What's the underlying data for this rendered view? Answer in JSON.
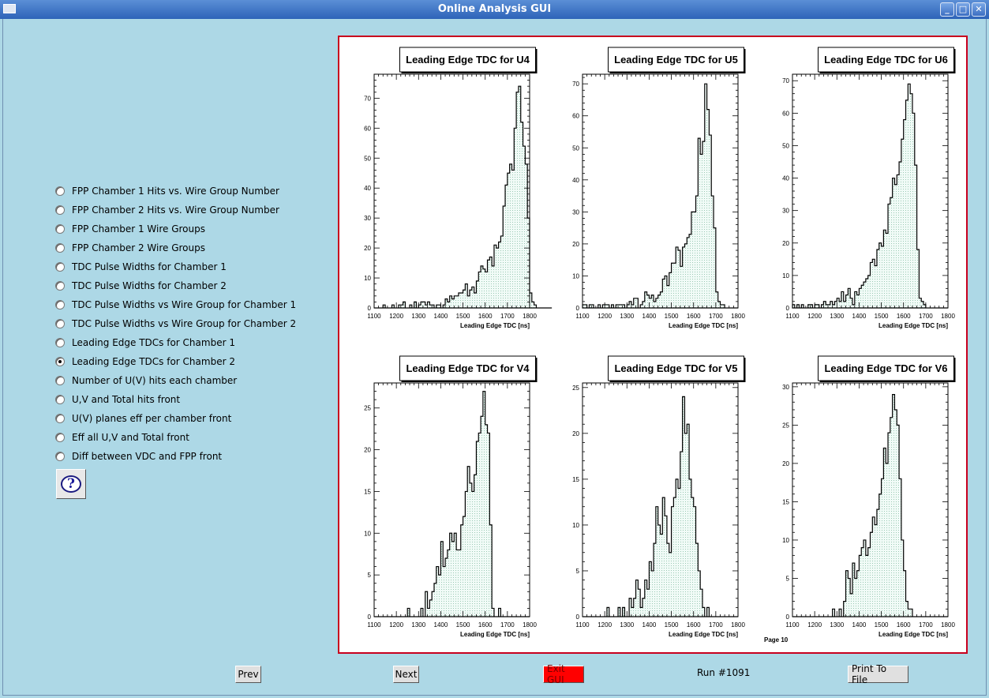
{
  "window": {
    "title": "Online Analysis GUI"
  },
  "options": [
    {
      "label": "FPP Chamber 1 Hits vs. Wire Group Number",
      "checked": false
    },
    {
      "label": "FPP Chamber 2 Hits vs. Wire Group Number",
      "checked": false
    },
    {
      "label": "FPP Chamber 1 Wire Groups",
      "checked": false
    },
    {
      "label": "FPP Chamber 2 Wire Groups",
      "checked": false
    },
    {
      "label": "TDC Pulse Widths for Chamber 1",
      "checked": false
    },
    {
      "label": "TDC Pulse Widths for Chamber 2",
      "checked": false
    },
    {
      "label": "TDC Pulse Widths vs Wire Group for Chamber 1",
      "checked": false
    },
    {
      "label": "TDC Pulse Widths vs Wire Group for Chamber 2",
      "checked": false
    },
    {
      "label": "Leading Edge TDCs for Chamber 1",
      "checked": false
    },
    {
      "label": "Leading Edge TDCs for Chamber 2",
      "checked": true
    },
    {
      "label": "Number of U(V) hits each chamber",
      "checked": false
    },
    {
      "label": "U,V and Total hits front",
      "checked": false
    },
    {
      "label": "U(V) planes eff per chamber front",
      "checked": false
    },
    {
      "label": "Eff all U,V and Total front",
      "checked": false
    },
    {
      "label": "Diff between VDC and FPP front",
      "checked": false
    }
  ],
  "buttons": {
    "prev": "Prev",
    "next": "Next",
    "exit": "Exit GUI",
    "print": "Print To File"
  },
  "run_label": "Run #1091",
  "page_label": "Page 10",
  "colors": {
    "background": "#add8e6",
    "canvas_border": "#c8001e",
    "histogram_fill": "#e8f6f1",
    "exit_button": "#ff0000"
  },
  "chart_data": [
    {
      "type": "histogram",
      "title": "Leading Edge TDC for U4",
      "xlabel": "Leading Edge TDC [ns]",
      "xlim": [
        1100,
        1800
      ],
      "ylim": [
        0,
        78
      ],
      "xticks": [
        1100,
        1200,
        1300,
        1400,
        1500,
        1600,
        1700,
        1800
      ],
      "yticks": [
        0,
        10,
        20,
        30,
        40,
        50,
        60,
        70
      ],
      "x_start": 1100,
      "bin_width": 10,
      "values": [
        0,
        0,
        0,
        0,
        1,
        0,
        0,
        0,
        1,
        0,
        0,
        1,
        1,
        2,
        0,
        0,
        1,
        0,
        2,
        0,
        1,
        2,
        2,
        1,
        2,
        1,
        1,
        0,
        1,
        1,
        0,
        1,
        3,
        2,
        4,
        3,
        4,
        4,
        5,
        5,
        6,
        8,
        4,
        6,
        7,
        5,
        9,
        12,
        14,
        13,
        12,
        16,
        17,
        14,
        21,
        20,
        22,
        24,
        34,
        41,
        45,
        48,
        46,
        60,
        72,
        74,
        62,
        54,
        48,
        30,
        5,
        2,
        1,
        0,
        0,
        0,
        0,
        0,
        0,
        0
      ]
    },
    {
      "type": "histogram",
      "title": "Leading Edge TDC for U5",
      "xlabel": "Leading Edge TDC [ns]",
      "xlim": [
        1100,
        1800
      ],
      "ylim": [
        0,
        73
      ],
      "xticks": [
        1100,
        1200,
        1300,
        1400,
        1500,
        1600,
        1700,
        1800
      ],
      "yticks": [
        0,
        10,
        20,
        30,
        40,
        50,
        60,
        70
      ],
      "x_start": 1100,
      "bin_width": 10,
      "values": [
        1,
        1,
        0,
        1,
        1,
        0,
        0,
        1,
        0,
        1,
        1,
        1,
        0,
        1,
        0,
        1,
        1,
        1,
        1,
        0,
        1,
        2,
        1,
        3,
        3,
        0,
        1,
        2,
        5,
        4,
        3,
        4,
        2,
        3,
        4,
        5,
        9,
        10,
        7,
        11,
        14,
        14,
        19,
        18,
        13,
        19,
        20,
        22,
        23,
        30,
        30,
        35,
        53,
        48,
        52,
        70,
        62,
        54,
        35,
        25,
        5,
        2,
        1,
        1,
        0,
        0,
        0,
        0,
        0,
        0
      ]
    },
    {
      "type": "histogram",
      "title": "Leading Edge TDC for U6",
      "xlabel": "Leading Edge TDC [ns]",
      "xlim": [
        1100,
        1800
      ],
      "ylim": [
        0,
        72
      ],
      "xticks": [
        1100,
        1200,
        1300,
        1400,
        1500,
        1600,
        1700,
        1800
      ],
      "yticks": [
        0,
        10,
        20,
        30,
        40,
        50,
        60,
        70
      ],
      "x_start": 1100,
      "bin_width": 10,
      "values": [
        1,
        0,
        1,
        0,
        1,
        0,
        0,
        1,
        1,
        0,
        1,
        1,
        0,
        1,
        2,
        1,
        1,
        2,
        1,
        2,
        3,
        2,
        5,
        2,
        4,
        6,
        3,
        1,
        5,
        4,
        6,
        7,
        8,
        9,
        10,
        14,
        15,
        13,
        18,
        20,
        19,
        24,
        23,
        32,
        34,
        40,
        38,
        41,
        45,
        52,
        58,
        64,
        69,
        66,
        60,
        44,
        18,
        3,
        2,
        1,
        0,
        0,
        0,
        0,
        0,
        0,
        0,
        0,
        0,
        0
      ]
    },
    {
      "type": "histogram",
      "title": "Leading Edge TDC for V4",
      "xlabel": "Leading Edge TDC [ns]",
      "xlim": [
        1100,
        1800
      ],
      "ylim": [
        0,
        28
      ],
      "xticks": [
        1100,
        1200,
        1300,
        1400,
        1500,
        1600,
        1700,
        1800
      ],
      "yticks": [
        0,
        5,
        10,
        15,
        20,
        25
      ],
      "x_start": 1100,
      "bin_width": 10,
      "values": [
        0,
        0,
        0,
        0,
        0,
        0,
        0,
        0,
        0,
        0,
        0,
        0,
        0,
        0,
        0,
        1,
        0,
        0,
        0,
        0,
        0,
        1,
        0,
        3,
        1,
        2,
        3,
        4,
        6,
        5,
        9,
        6,
        7,
        8,
        10,
        9,
        10,
        8,
        8,
        11,
        12,
        15,
        18,
        16,
        15,
        17,
        21,
        22,
        24,
        27,
        23,
        22,
        11,
        1,
        0,
        0,
        1,
        0,
        0,
        0,
        0,
        0,
        0,
        0,
        0,
        0,
        0,
        0,
        0,
        0
      ]
    },
    {
      "type": "histogram",
      "title": "Leading Edge TDC for V5",
      "xlabel": "Leading Edge TDC [ns]",
      "xlim": [
        1100,
        1800
      ],
      "ylim": [
        0,
        25.5
      ],
      "xticks": [
        1100,
        1200,
        1300,
        1400,
        1500,
        1600,
        1700,
        1800
      ],
      "yticks": [
        0,
        5,
        10,
        15,
        20,
        25
      ],
      "x_start": 1100,
      "bin_width": 10,
      "values": [
        0,
        0,
        0,
        0,
        0,
        0,
        0,
        0,
        0,
        0,
        0,
        1,
        0,
        0,
        0,
        0,
        1,
        0,
        1,
        0,
        0,
        2,
        1,
        2,
        4,
        3,
        1,
        2,
        4,
        3,
        6,
        5,
        8,
        12,
        10,
        9,
        13,
        11,
        8,
        7,
        12,
        13,
        15,
        14,
        18,
        24,
        20,
        21,
        15,
        13,
        12,
        8,
        5,
        3,
        1,
        0,
        1,
        0,
        0,
        0,
        0,
        0,
        0,
        0,
        0,
        0,
        0,
        0,
        0,
        0
      ]
    },
    {
      "type": "histogram",
      "title": "Leading Edge TDC for V6",
      "xlabel": "Leading Edge TDC [ns]",
      "xlim": [
        1100,
        1800
      ],
      "ylim": [
        0,
        30.5
      ],
      "xticks": [
        1100,
        1200,
        1300,
        1400,
        1500,
        1600,
        1700,
        1800
      ],
      "yticks": [
        0,
        5,
        10,
        15,
        20,
        25,
        30
      ],
      "x_start": 1100,
      "bin_width": 10,
      "values": [
        0,
        0,
        0,
        0,
        0,
        0,
        0,
        0,
        0,
        0,
        0,
        0,
        0,
        0,
        0,
        0,
        0,
        0,
        1,
        0,
        0,
        1,
        0,
        2,
        6,
        5,
        3,
        7,
        5,
        6,
        8,
        9,
        10,
        8,
        9,
        11,
        13,
        12,
        14,
        16,
        18,
        22,
        20,
        24,
        26,
        29,
        27,
        25,
        18,
        10,
        6,
        2,
        1,
        1,
        0,
        0,
        0,
        0,
        0,
        0,
        0,
        0,
        0,
        0,
        0,
        0,
        0,
        0,
        0,
        0
      ]
    }
  ]
}
